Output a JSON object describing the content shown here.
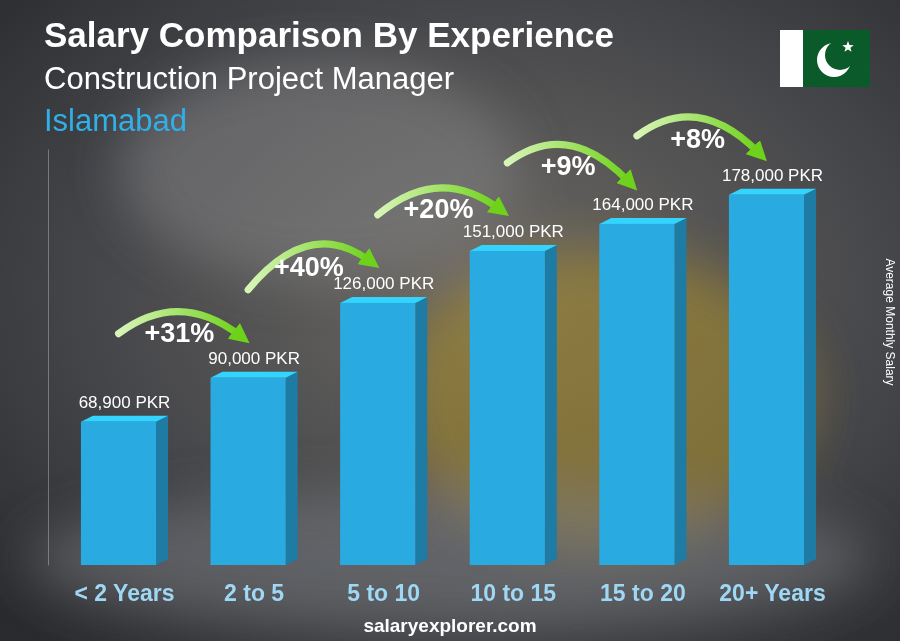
{
  "chart_data": {
    "type": "bar",
    "title": "Salary Comparison By Experience",
    "subtitle": [
      "Construction Project Manager",
      "Islamabad"
    ],
    "y_label": "Average Monthly Salary",
    "categories": [
      "< 2 Years",
      "2 to 5",
      "5 to 10",
      "10 to 15",
      "15 to 20",
      "20+ Years"
    ],
    "values": [
      68900,
      90000,
      126000,
      151000,
      164000,
      178000
    ],
    "value_labels": [
      "68,900 PKR",
      "90,000 PKR",
      "126,000 PKR",
      "151,000 PKR",
      "164,000 PKR",
      "178,000 PKR"
    ],
    "annotations": [
      "+31%",
      "+40%",
      "+20%",
      "+9%",
      "+8%"
    ],
    "source": "salaryexplorer.com",
    "color": "#29abe2",
    "ylim": [
      0,
      200000
    ],
    "data_labels": true,
    "tick_labels": "x"
  }
}
